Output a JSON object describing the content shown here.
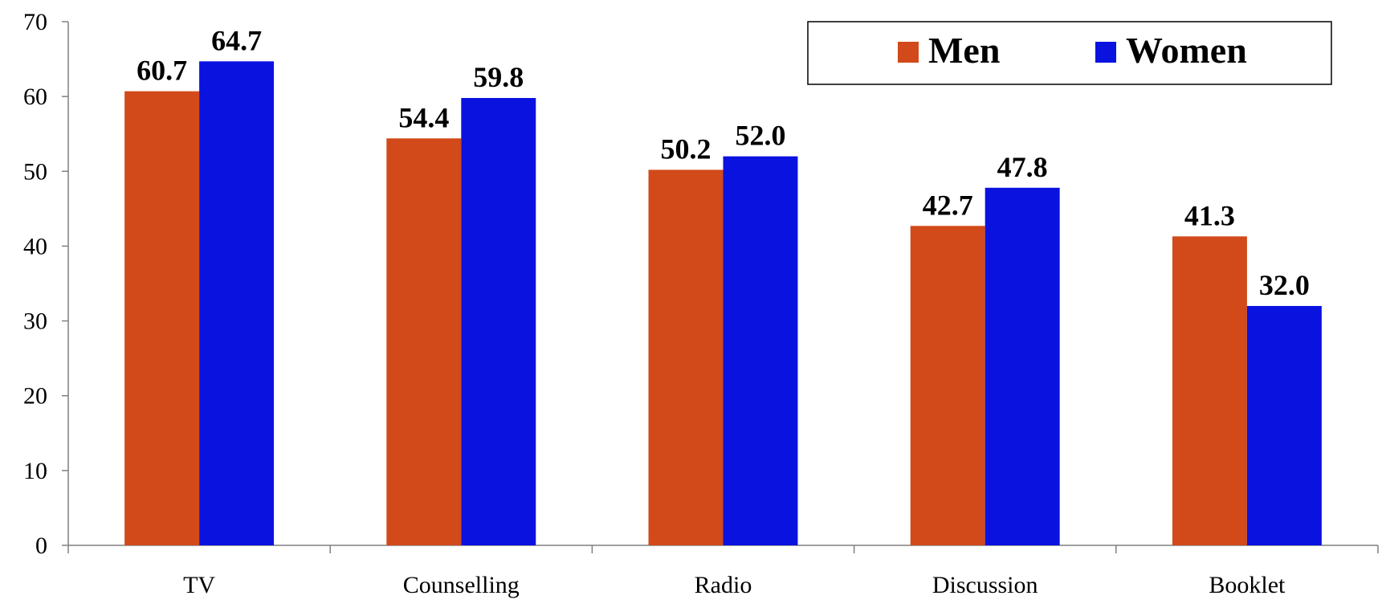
{
  "chart_data": {
    "type": "bar",
    "categories": [
      "TV",
      "Counselling",
      "Radio",
      "Discussion",
      "Booklet"
    ],
    "series": [
      {
        "name": "Men",
        "color": "#D24A1A",
        "values": [
          60.7,
          54.4,
          50.2,
          42.7,
          41.3
        ],
        "labels": [
          "60.7",
          "54.4",
          "50.2",
          "42.7",
          "41.3"
        ]
      },
      {
        "name": "Women",
        "color": "#0A12E0",
        "values": [
          64.7,
          59.8,
          52.0,
          47.8,
          32.0
        ],
        "labels": [
          "64.7",
          "59.8",
          "52.0",
          "47.8",
          "32.0"
        ]
      }
    ],
    "ylim": [
      0,
      70
    ],
    "yticks": [
      "0",
      "10",
      "20",
      "30",
      "40",
      "50",
      "60",
      "70"
    ],
    "title": "",
    "xlabel": "",
    "ylabel": "",
    "grid": false,
    "legend_position": "top-right",
    "data_labels": true
  }
}
